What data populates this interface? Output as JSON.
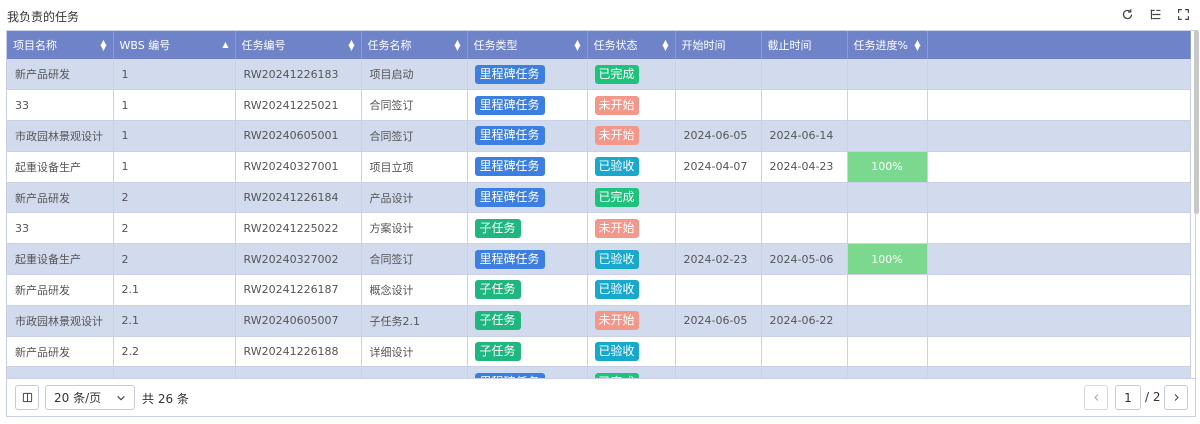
{
  "panel_title": "我负责的任务",
  "toolbar": {
    "refresh_icon": "refresh-icon",
    "columns_icon": "column-settings-icon",
    "fullscreen_icon": "fullscreen-icon"
  },
  "columns": [
    {
      "label": "项目名称",
      "sort": "both"
    },
    {
      "label": "WBS 编号",
      "sort": "asc"
    },
    {
      "label": "任务编号",
      "sort": "both"
    },
    {
      "label": "任务名称",
      "sort": "both"
    },
    {
      "label": "任务类型",
      "sort": "both"
    },
    {
      "label": "任务状态",
      "sort": "both"
    },
    {
      "label": "开始时间",
      "sort": "none"
    },
    {
      "label": "截止时间",
      "sort": "none"
    },
    {
      "label": "任务进度%",
      "sort": "both"
    }
  ],
  "rows": [
    {
      "project": "新产品研发",
      "wbs": "1",
      "code": "RW20241226183",
      "name": "项目启动",
      "type": "里程碑任务",
      "type_kind": "milestone",
      "status": "已完成",
      "status_kind": "done",
      "start": "",
      "end": "",
      "progress": ""
    },
    {
      "project": "33",
      "wbs": "1",
      "code": "RW20241225021",
      "name": "合同签订",
      "type": "里程碑任务",
      "type_kind": "milestone",
      "status": "未开始",
      "status_kind": "todo",
      "start": "",
      "end": "",
      "progress": ""
    },
    {
      "project": "市政园林景观设计",
      "wbs": "1",
      "code": "RW20240605001",
      "name": "合同签订",
      "type": "里程碑任务",
      "type_kind": "milestone",
      "status": "未开始",
      "status_kind": "todo",
      "start": "2024-06-05",
      "end": "2024-06-14",
      "progress": ""
    },
    {
      "project": "起重设备生产",
      "wbs": "1",
      "code": "RW20240327001",
      "name": "项目立项",
      "type": "里程碑任务",
      "type_kind": "milestone",
      "status": "已验收",
      "status_kind": "accepted",
      "start": "2024-04-07",
      "end": "2024-04-23",
      "progress": "100%"
    },
    {
      "project": "新产品研发",
      "wbs": "2",
      "code": "RW20241226184",
      "name": "产品设计",
      "type": "里程碑任务",
      "type_kind": "milestone",
      "status": "已完成",
      "status_kind": "done",
      "start": "",
      "end": "",
      "progress": ""
    },
    {
      "project": "33",
      "wbs": "2",
      "code": "RW20241225022",
      "name": "方案设计",
      "type": "子任务",
      "type_kind": "subtask",
      "status": "未开始",
      "status_kind": "todo",
      "start": "",
      "end": "",
      "progress": ""
    },
    {
      "project": "起重设备生产",
      "wbs": "2",
      "code": "RW20240327002",
      "name": "合同签订",
      "type": "里程碑任务",
      "type_kind": "milestone",
      "status": "已验收",
      "status_kind": "accepted",
      "start": "2024-02-23",
      "end": "2024-05-06",
      "progress": "100%"
    },
    {
      "project": "新产品研发",
      "wbs": "2.1",
      "code": "RW20241226187",
      "name": "概念设计",
      "type": "子任务",
      "type_kind": "subtask",
      "status": "已验收",
      "status_kind": "accepted",
      "start": "",
      "end": "",
      "progress": ""
    },
    {
      "project": "市政园林景观设计",
      "wbs": "2.1",
      "code": "RW20240605007",
      "name": "子任务2.1",
      "type": "子任务",
      "type_kind": "subtask",
      "status": "未开始",
      "status_kind": "todo",
      "start": "2024-06-05",
      "end": "2024-06-22",
      "progress": ""
    },
    {
      "project": "新产品研发",
      "wbs": "2.2",
      "code": "RW20241226188",
      "name": "详细设计",
      "type": "子任务",
      "type_kind": "subtask",
      "status": "已验收",
      "status_kind": "accepted",
      "start": "",
      "end": "",
      "progress": ""
    },
    {
      "project": "",
      "wbs": "",
      "code": "",
      "name": "",
      "type": "里程碑任务",
      "type_kind": "milestone",
      "status": "已完成",
      "status_kind": "done",
      "start": "",
      "end": "",
      "progress": ""
    }
  ],
  "colors": {
    "header": "#6f84c8",
    "row_alt": "#d2dbee",
    "progress_fill": "#7bd98f"
  },
  "pagination": {
    "page_size": "20 条/页",
    "total": "共 26 条",
    "current_page": "1",
    "total_pages": "/ 2"
  }
}
